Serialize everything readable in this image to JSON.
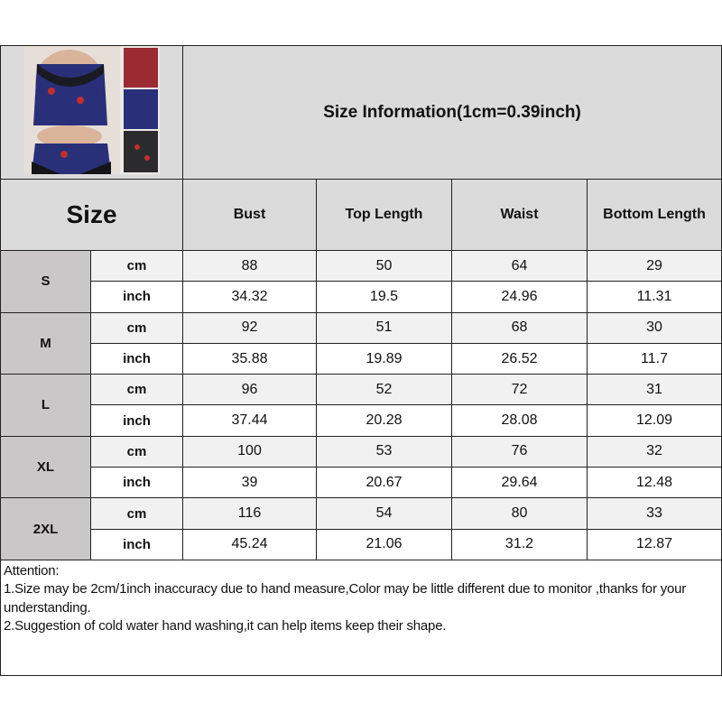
{
  "title": "Size Information(1cm=0.39inch)",
  "size_header": "Size",
  "columns": [
    "Bust",
    "Top Length",
    "Waist",
    "Bottom Length"
  ],
  "unit_labels": {
    "cm": "cm",
    "inch": "inch"
  },
  "rows": [
    {
      "size": "S",
      "cm": [
        "88",
        "50",
        "64",
        "29"
      ],
      "inch": [
        "34.32",
        "19.5",
        "24.96",
        "11.31"
      ]
    },
    {
      "size": "M",
      "cm": [
        "92",
        "51",
        "68",
        "30"
      ],
      "inch": [
        "35.88",
        "19.89",
        "26.52",
        "11.7"
      ]
    },
    {
      "size": "L",
      "cm": [
        "96",
        "52",
        "72",
        "31"
      ],
      "inch": [
        "37.44",
        "20.28",
        "28.08",
        "12.09"
      ]
    },
    {
      "size": "XL",
      "cm": [
        "100",
        "53",
        "76",
        "32"
      ],
      "inch": [
        "39",
        "20.67",
        "29.64",
        "12.48"
      ]
    },
    {
      "size": "2XL",
      "cm": [
        "116",
        "54",
        "80",
        "33"
      ],
      "inch": [
        "45.24",
        "21.06",
        "31.2",
        "12.87"
      ]
    }
  ],
  "attention": {
    "heading": "Attention:",
    "notes": [
      "1.Size may be 2cm/1inch inaccuracy due to hand measure,Color may be little different due to monitor ,thanks for your understanding.",
      "2.Suggestion of cold water hand washing,it can help items keep their shape."
    ]
  },
  "colors": {
    "header_bg": "#dcdbdb",
    "size_col_bg": "#c9c7c7",
    "cm_row_bg": "#f1f1f1",
    "border": "#222222"
  }
}
